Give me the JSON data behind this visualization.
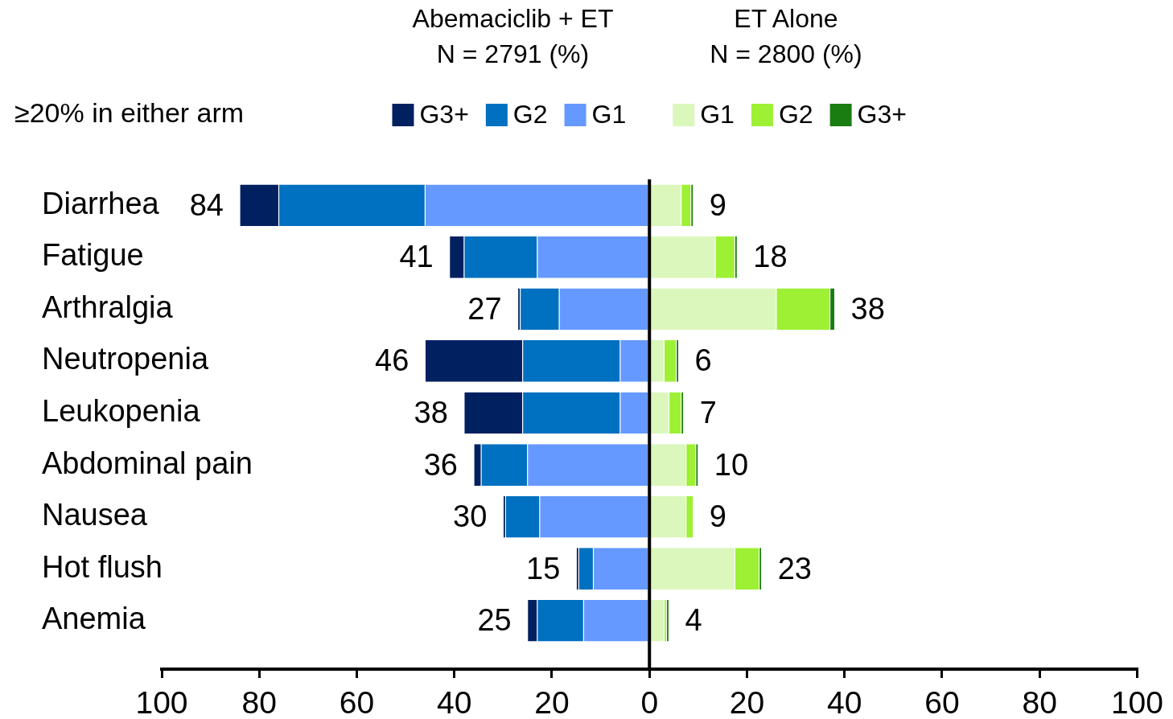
{
  "chart_data": {
    "type": "bar",
    "orientation": "horizontal",
    "stacked": true,
    "annotations": [
      "Abemaciclib + ET\nN = 2791 (%)",
      "ET Alone\nN = 2800 (%)",
      "≥20% in either arm"
    ],
    "categories": [
      "Diarrhea",
      "Fatigue",
      "Arthralgia",
      "Neutropenia",
      "Leukopenia",
      "Abdominal pain",
      "Nausea",
      "Hot flush",
      "Anemia"
    ],
    "series": [
      {
        "name": "G1",
        "color": "#6699ff",
        "values": [
          -46,
          -23,
          -18.5,
          -6,
          -6,
          -25,
          -22.5,
          -11.5,
          -13.5
        ]
      },
      {
        "name": "G2",
        "color": "#0070c0",
        "values": [
          -30,
          -15,
          -8,
          -20,
          -20,
          -9.5,
          -7,
          -3,
          -9.5
        ]
      },
      {
        "name": "G3+",
        "color": "#002060",
        "values": [
          -8,
          -3,
          -0.5,
          -20,
          -12,
          -1.5,
          -0.5,
          -0.5,
          -2
        ]
      },
      {
        "name": "G1",
        "color": "#dbf7bc",
        "values": [
          6.5,
          13.5,
          26,
          3,
          4,
          7.5,
          7.5,
          17.5,
          3
        ]
      },
      {
        "name": "G2",
        "color": "#9ef034",
        "values": [
          2,
          4,
          11,
          2.5,
          2.5,
          2,
          1.5,
          5,
          0.5
        ]
      },
      {
        "name": "G3+",
        "color": "#1a7d12",
        "values": [
          0.5,
          0.5,
          1,
          0.5,
          0.5,
          0.5,
          0,
          0.5,
          0.5
        ]
      }
    ],
    "totals": [
      [
        "84",
        "41",
        "27",
        "46",
        "38",
        "36",
        "30",
        "15",
        "25"
      ],
      [
        "9",
        "18",
        "38",
        "6",
        "7",
        "10",
        "9",
        "23",
        "4"
      ]
    ],
    "xlim": [
      -100,
      100
    ],
    "xticks": [
      {
        "value": -100,
        "label": "100"
      },
      {
        "value": -80,
        "label": "80"
      },
      {
        "value": -60,
        "label": "60"
      },
      {
        "value": -40,
        "label": "40"
      },
      {
        "value": -20,
        "label": "20"
      },
      0,
      20,
      40,
      60,
      80,
      100
    ],
    "legend": "top"
  }
}
